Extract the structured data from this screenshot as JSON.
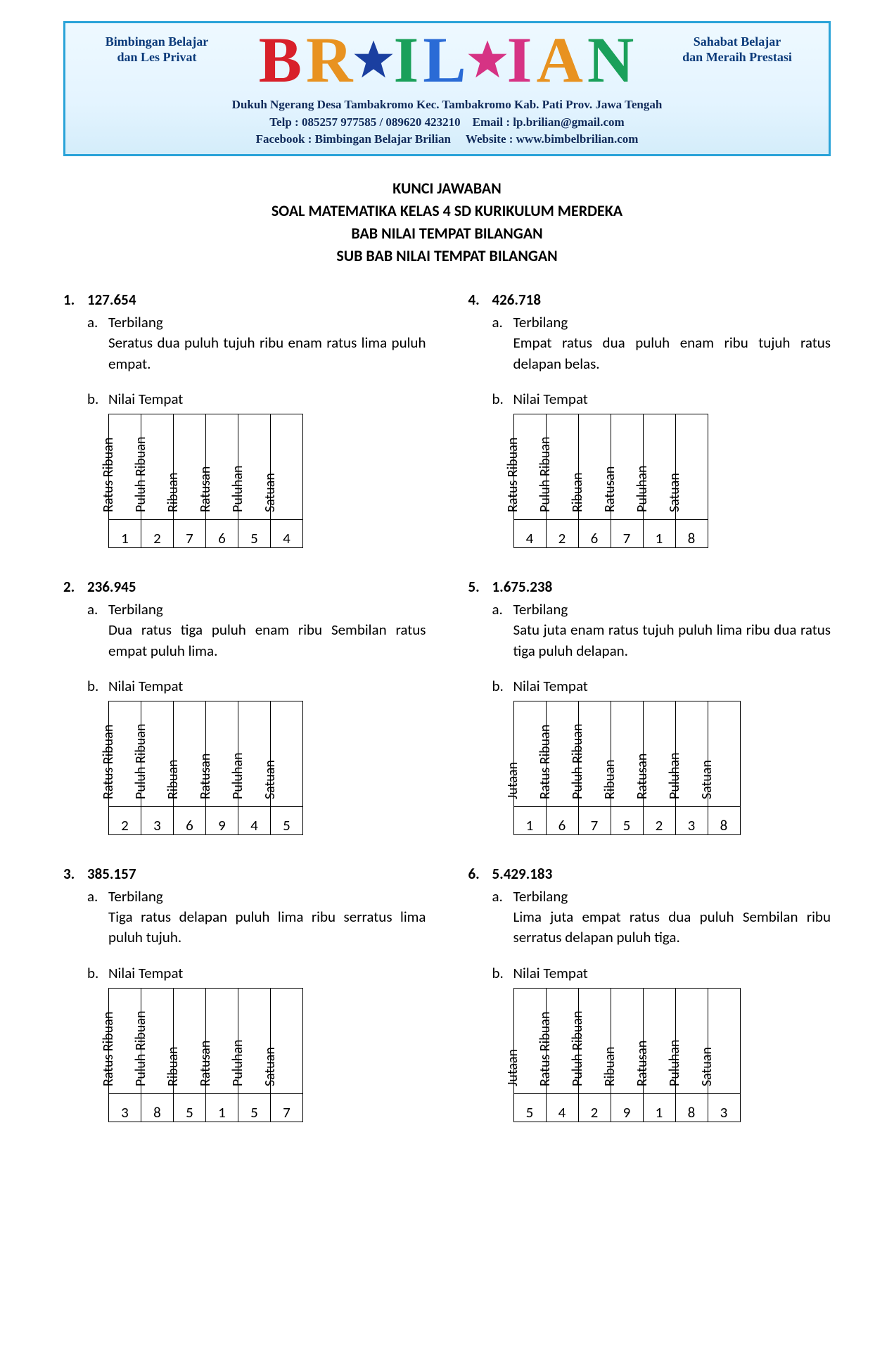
{
  "banner": {
    "border_color": "#2aa3d8",
    "bg_gradient": [
      "#eef9ff",
      "#e4f4ff",
      "#d4edfa"
    ],
    "tagline_left_1": "Bimbingan Belajar",
    "tagline_left_2": "dan Les Privat",
    "tagline_right_1": "Sahabat Belajar",
    "tagline_right_2": "dan Meraih Prestasi",
    "brand": [
      {
        "type": "letter",
        "text": "B",
        "color": "#d8202a"
      },
      {
        "type": "letter",
        "text": "R",
        "color": "#e89220"
      },
      {
        "type": "star",
        "fill": "#1a3fa0",
        "accent": "#e44"
      },
      {
        "type": "letter",
        "text": "I",
        "color": "#1aa05a"
      },
      {
        "type": "letter",
        "text": "L",
        "color": "#2a6bd6"
      },
      {
        "type": "star",
        "fill": "#d63384",
        "accent": "#333"
      },
      {
        "type": "letter",
        "text": "I",
        "color": "#d63384"
      },
      {
        "type": "letter",
        "text": "A",
        "color": "#e89220"
      },
      {
        "type": "letter",
        "text": "N",
        "color": "#1aa05a"
      }
    ],
    "info_line1": "Dukuh Ngerang Desa Tambakromo Kec. Tambakromo Kab. Pati Prov. Jawa Tengah",
    "info_line2": "Telp : 085257 977585 / 089620 423210    Email : lp.brilian@gmail.com",
    "info_line3": "Facebook : Bimbingan Belajar Brilian     Website : www.bimbelbrilian.com"
  },
  "titles": {
    "t1": "KUNCI JAWABAN",
    "t2": "SOAL MATEMATIKA KELAS 4 SD KURIKULUM MERDEKA",
    "t3": "BAB NILAI TEMPAT BILANGAN",
    "t4": "SUB BAB NILAI TEMPAT BILANGAN"
  },
  "labels": {
    "terbilang": "Terbilang",
    "nilai_tempat": "Nilai Tempat",
    "a": "a.",
    "b": "b."
  },
  "place_headers_6": [
    "Ratus Ribuan",
    "Puluh Ribuan",
    "Ribuan",
    "Ratusan",
    "Puluhan",
    "Satuan"
  ],
  "place_headers_7": [
    "Jutaan",
    "Ratus Ribuan",
    "Puluh Ribuan",
    "Ribuan",
    "Ratusan",
    "Puluhan",
    "Satuan"
  ],
  "questions": [
    {
      "num": "1.",
      "value": "127.654",
      "terbilang": "Seratus dua puluh tujuh ribu enam ratus lima puluh empat.",
      "headers": "6",
      "digits": [
        "1",
        "2",
        "7",
        "6",
        "5",
        "4"
      ]
    },
    {
      "num": "2.",
      "value": "236.945",
      "terbilang": "Dua ratus tiga puluh enam ribu Sembilan ratus empat puluh lima.",
      "headers": "6",
      "digits": [
        "2",
        "3",
        "6",
        "9",
        "4",
        "5"
      ]
    },
    {
      "num": "3.",
      "value": "385.157",
      "terbilang": "Tiga ratus delapan puluh lima ribu serratus lima puluh tujuh.",
      "headers": "6",
      "digits": [
        "3",
        "8",
        "5",
        "1",
        "5",
        "7"
      ]
    },
    {
      "num": "4.",
      "value": "426.718",
      "terbilang": "Empat ratus dua puluh enam ribu tujuh ratus delapan belas.",
      "headers": "6",
      "digits": [
        "4",
        "2",
        "6",
        "7",
        "1",
        "8"
      ]
    },
    {
      "num": "5.",
      "value": "1.675.238",
      "terbilang": "Satu juta enam ratus tujuh puluh lima ribu dua ratus tiga puluh delapan.",
      "headers": "7",
      "digits": [
        "1",
        "6",
        "7",
        "5",
        "2",
        "3",
        "8"
      ]
    },
    {
      "num": "6.",
      "value": "5.429.183",
      "terbilang": "Lima juta empat ratus dua puluh Sembilan ribu serratus delapan puluh tiga.",
      "headers": "7",
      "digits": [
        "5",
        "4",
        "2",
        "9",
        "1",
        "8",
        "3"
      ]
    }
  ]
}
